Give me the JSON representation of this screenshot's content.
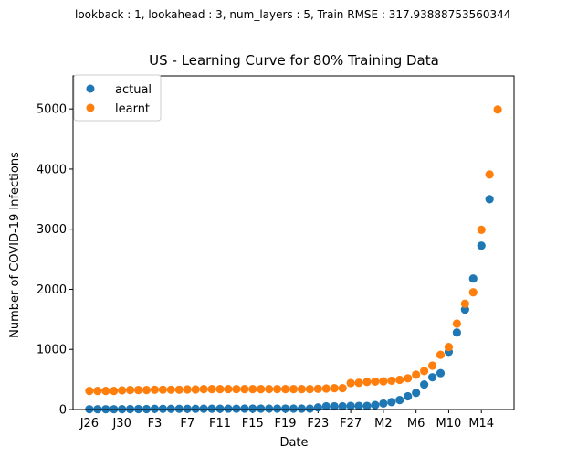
{
  "figure": {
    "suptitle": "lookback : 1, lookahead : 3, num_layers : 5, Train RMSE : 317.93888753560344"
  },
  "colors": {
    "actual": "#1f77b4",
    "learnt": "#ff7f0e"
  },
  "chart_data": {
    "type": "scatter",
    "title": "US - Learning Curve for 80% Training Data",
    "xlabel": "Date",
    "ylabel": "Number of COVID-19 Infections",
    "ylim": [
      0,
      5550
    ],
    "y_ticks": [
      0,
      1000,
      2000,
      3000,
      4000,
      5000
    ],
    "x_tick_labels": [
      "J26",
      "J30",
      "F3",
      "F7",
      "F11",
      "F15",
      "F19",
      "F23",
      "F27",
      "M2",
      "M6",
      "M10",
      "M14"
    ],
    "x_tick_positions": [
      0,
      4,
      8,
      12,
      16,
      20,
      24,
      28,
      32,
      36,
      40,
      44,
      48
    ],
    "xlim": [
      -2,
      52
    ],
    "legend_position": "upper-left",
    "grid": false,
    "series": [
      {
        "name": "actual",
        "x": [
          0,
          1,
          2,
          3,
          4,
          5,
          6,
          7,
          8,
          9,
          10,
          11,
          12,
          13,
          14,
          15,
          16,
          17,
          18,
          19,
          20,
          21,
          22,
          23,
          24,
          25,
          26,
          27,
          28,
          29,
          30,
          31,
          32,
          33,
          34,
          35,
          36,
          37,
          38,
          39,
          40,
          41,
          42,
          43,
          44,
          45,
          46,
          47,
          48,
          49
        ],
        "values": [
          5,
          5,
          5,
          5,
          6,
          8,
          8,
          8,
          11,
          11,
          11,
          12,
          12,
          12,
          13,
          13,
          14,
          14,
          14,
          15,
          15,
          15,
          15,
          15,
          15,
          15,
          15,
          15,
          35,
          53,
          53,
          53,
          60,
          60,
          60,
          75,
          100,
          124,
          158,
          221,
          278,
          417,
          537,
          605,
          959,
          1281,
          1663,
          2179,
          2726,
          3499
        ]
      },
      {
        "name": "learnt",
        "x": [
          0,
          1,
          2,
          3,
          4,
          5,
          6,
          7,
          8,
          9,
          10,
          11,
          12,
          13,
          14,
          15,
          16,
          17,
          18,
          19,
          20,
          21,
          22,
          23,
          24,
          25,
          26,
          27,
          28,
          29,
          30,
          31,
          32,
          33,
          34,
          35,
          36,
          37,
          38,
          39,
          40,
          41,
          42,
          43,
          44,
          45,
          46,
          47,
          48,
          49,
          50
        ],
        "values": [
          310,
          310,
          310,
          310,
          320,
          325,
          325,
          325,
          330,
          330,
          330,
          330,
          335,
          335,
          340,
          340,
          340,
          340,
          340,
          340,
          340,
          340,
          340,
          340,
          340,
          340,
          340,
          340,
          345,
          350,
          355,
          355,
          440,
          445,
          460,
          465,
          470,
          480,
          495,
          520,
          580,
          640,
          730,
          910,
          1040,
          1430,
          1760,
          1950,
          2990,
          3910,
          4990
        ]
      }
    ]
  }
}
